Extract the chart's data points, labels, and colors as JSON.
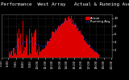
{
  "title": "Solar PV/Inverter Performance  West Array",
  "subtitle": "Actual & Running Average Power Output",
  "bg_color": "#000000",
  "plot_bg": "#000000",
  "grid_color": "#555555",
  "bar_color": "#dd0000",
  "avg_color": "#2255ff",
  "ylim": [
    0,
    11.0
  ],
  "ytick_vals": [
    2,
    4,
    6,
    8,
    10
  ],
  "ytick_labels": [
    "2",
    "4",
    "6",
    "8",
    "10"
  ],
  "title_fontsize": 4.2,
  "tick_fontsize": 2.8,
  "legend_fontsize": 2.8,
  "n_points": 144
}
